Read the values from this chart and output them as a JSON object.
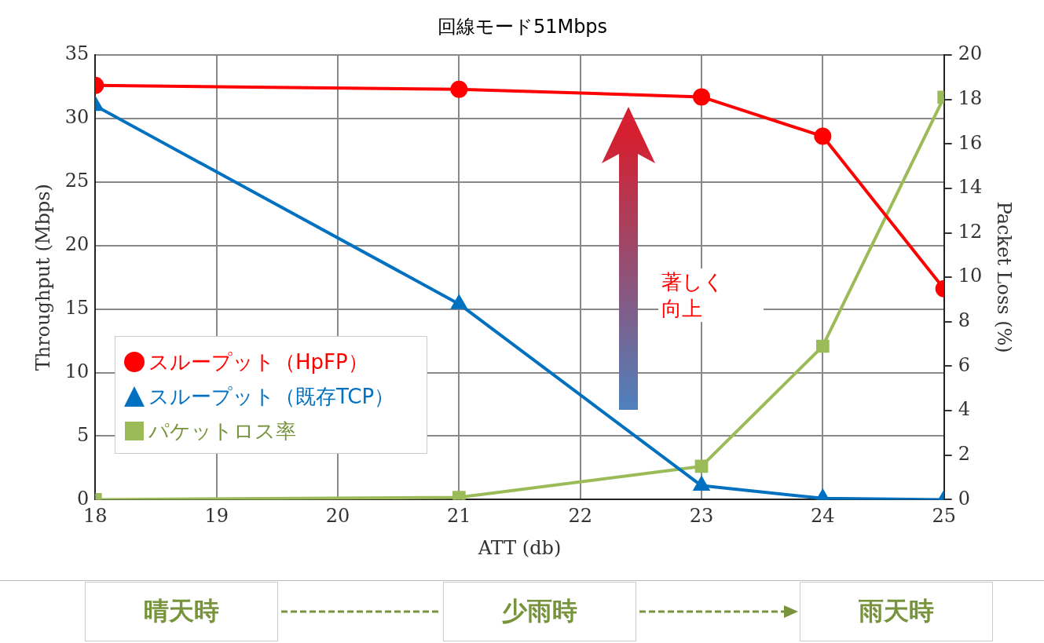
{
  "chart_data": {
    "type": "line",
    "title": "回線モード51Mbps",
    "xlabel": "ATT (db)",
    "ylabel": "Throughput (Mbps)",
    "y2label": "Packet Loss (%)",
    "x": [
      18,
      21,
      23,
      24,
      25
    ],
    "xlim": [
      18,
      25
    ],
    "xticks": [
      18,
      19,
      20,
      21,
      22,
      23,
      24,
      25
    ],
    "ylim": [
      0,
      35
    ],
    "yticks": [
      0,
      5,
      10,
      15,
      20,
      25,
      30,
      35
    ],
    "y2lim": [
      0,
      20
    ],
    "y2ticks": [
      0,
      2,
      4,
      6,
      8,
      10,
      12,
      14,
      16,
      18,
      20
    ],
    "grid": true,
    "legend": "left",
    "line_style": "solid",
    "series": [
      {
        "name": "スループット（HpFP）",
        "color": "#ff0000",
        "marker": "circle",
        "values": [
          32.6,
          32.3,
          31.7,
          28.6,
          16.6
        ]
      },
      {
        "name": "スループット（既存TCP）",
        "color": "#0070c0",
        "marker": "triangle",
        "values": [
          31.0,
          15.4,
          1.1,
          0.1,
          0
        ]
      },
      {
        "name": "パケットロス率",
        "color": "#9bbb59",
        "marker": "square",
        "axis": "y2",
        "values": [
          0,
          0.1,
          1.5,
          6.9,
          18.1
        ]
      }
    ],
    "annotations": [
      "著しく向上",
      "晴天時",
      "少雨時",
      "雨天時"
    ]
  }
}
